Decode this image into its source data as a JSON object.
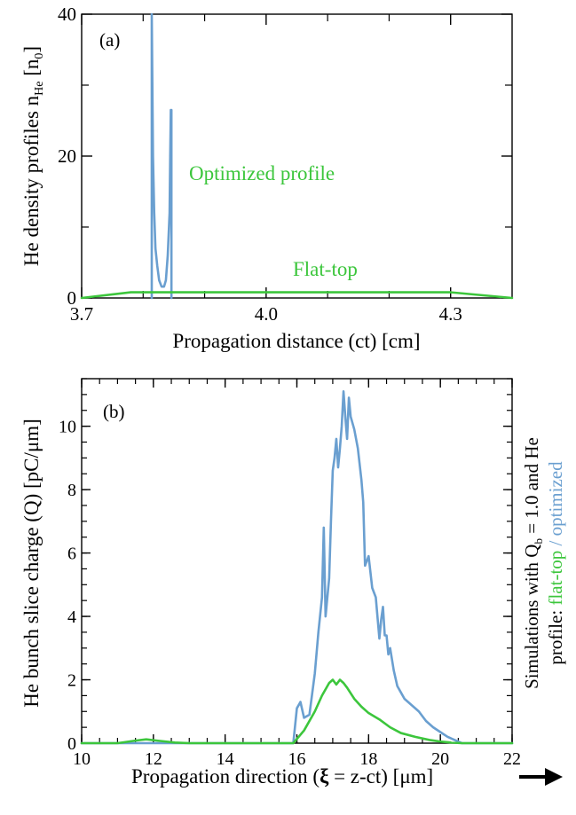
{
  "colors": {
    "blue": "#6a9fd0",
    "green": "#3cc63c",
    "axis": "#000000"
  },
  "chart_data": [
    {
      "type": "line",
      "panel_label": "(a)",
      "xlabel": "Propagation distance (ct) [cm]",
      "ylabel": "He density profiles n",
      "ylabel_sub": "He",
      "ylabel_tail": " [n",
      "ylabel_tail_sub": "0",
      "ylabel_end": "]",
      "xlim": [
        3.7,
        4.4
      ],
      "ylim": [
        0,
        40
      ],
      "x_ticks": [
        3.7,
        4.0,
        4.3
      ],
      "x_tick_labels": [
        "3.7",
        "4.0",
        "4.3"
      ],
      "y_ticks": [
        0,
        20,
        40
      ],
      "y_tick_labels": [
        "0",
        "20",
        "40"
      ],
      "annotations": [
        {
          "text": "Optimized profile",
          "color": "#3cc63c"
        },
        {
          "text": "Flat-top",
          "color": "#3cc63c"
        }
      ],
      "series": [
        {
          "color": "#6a9fd0",
          "x": [
            3.814,
            3.814,
            3.816,
            3.818,
            3.82,
            3.823,
            3.826,
            3.83,
            3.834,
            3.837,
            3.84,
            3.843,
            3.844,
            3.845,
            3.846,
            3.846
          ],
          "y": [
            0,
            40,
            20,
            12,
            7,
            4.5,
            2.5,
            1.6,
            1.6,
            2.5,
            6,
            12,
            20,
            26.5,
            26.5,
            0
          ]
        },
        {
          "color": "#3cc63c",
          "x": [
            3.7,
            3.78,
            4.3,
            4.4
          ],
          "y": [
            0,
            0.8,
            0.8,
            0
          ]
        }
      ]
    },
    {
      "type": "line",
      "panel_label": "(b)",
      "xlabel": "Propagation direction (",
      "xlabel_xi": "ξ",
      "xlabel_tail": " = z-ct) [μm]",
      "ylabel": "He bunch slice charge (Q) [pC/μm]",
      "side_label_1": "Simulations with Q",
      "side_label_1_sub": "b",
      "side_label_1_tail": " = 1.0 and He",
      "side_label_2": "profile: ",
      "side_label_2_green": "flat-top",
      "side_label_2_sep": " / ",
      "side_label_2_blue": "optimized",
      "xlim": [
        10,
        22
      ],
      "ylim": [
        0,
        11.5
      ],
      "x_ticks": [
        10,
        12,
        14,
        16,
        18,
        20,
        22
      ],
      "x_tick_labels": [
        "10",
        "12",
        "14",
        "16",
        "18",
        "20",
        "22"
      ],
      "y_ticks": [
        0,
        2,
        4,
        6,
        8,
        10
      ],
      "y_tick_labels": [
        "0",
        "2",
        "4",
        "6",
        "8",
        "10"
      ],
      "series": [
        {
          "color": "#6a9fd0",
          "x": [
            10,
            15.9,
            16.0,
            16.1,
            16.2,
            16.35,
            16.5,
            16.6,
            16.7,
            16.75,
            16.8,
            16.9,
            16.95,
            17.0,
            17.05,
            17.1,
            17.15,
            17.2,
            17.25,
            17.3,
            17.35,
            17.4,
            17.45,
            17.5,
            17.6,
            17.7,
            17.8,
            17.85,
            17.9,
            18.0,
            18.1,
            18.2,
            18.3,
            18.35,
            18.4,
            18.45,
            18.5,
            18.55,
            18.6,
            18.7,
            18.8,
            18.9,
            19.0,
            19.2,
            19.4,
            19.6,
            19.8,
            20.0,
            20.2,
            20.4,
            20.5,
            20.6,
            22
          ],
          "y": [
            0,
            0,
            1.1,
            1.3,
            0.8,
            0.9,
            2.2,
            3.5,
            4.6,
            6.8,
            4.0,
            5.2,
            7.0,
            8.6,
            9.0,
            9.6,
            8.7,
            9.3,
            10.0,
            11.1,
            10.3,
            9.6,
            10.9,
            10.3,
            9.9,
            9.3,
            8.3,
            7.6,
            5.6,
            5.9,
            4.9,
            4.6,
            3.3,
            3.9,
            4.3,
            3.4,
            3.4,
            2.8,
            3.0,
            2.3,
            1.8,
            1.6,
            1.4,
            1.2,
            1.0,
            0.7,
            0.5,
            0.35,
            0.2,
            0.1,
            0.05,
            0,
            0
          ]
        },
        {
          "color": "#3cc63c",
          "x": [
            10,
            11.0,
            11.5,
            11.8,
            12.1,
            12.6,
            13.0,
            15.9,
            16.2,
            16.5,
            16.7,
            16.9,
            17.0,
            17.1,
            17.2,
            17.3,
            17.4,
            17.6,
            17.8,
            18.0,
            18.3,
            18.6,
            18.9,
            19.3,
            19.7,
            20.0,
            20.3,
            20.6,
            22
          ],
          "y": [
            0,
            0,
            0.08,
            0.12,
            0.08,
            0.02,
            0,
            0,
            0.4,
            1.0,
            1.5,
            1.9,
            2.0,
            1.85,
            2.0,
            1.9,
            1.75,
            1.4,
            1.15,
            0.95,
            0.75,
            0.5,
            0.32,
            0.2,
            0.1,
            0.05,
            0.02,
            0,
            0
          ]
        }
      ]
    }
  ]
}
